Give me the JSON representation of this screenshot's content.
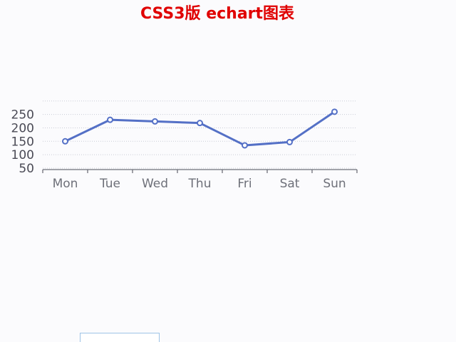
{
  "title": "CSS3版 echart图表",
  "bottom_button": {
    "label": ""
  },
  "colors": {
    "title": "#e00000",
    "series": "#5470c6",
    "axis": "#6e7079",
    "grid": "#e0e6f1"
  },
  "chart_data": {
    "type": "line",
    "categories": [
      "Mon",
      "Tue",
      "Wed",
      "Thu",
      "Fri",
      "Sat",
      "Sun"
    ],
    "values": [
      150,
      230,
      224,
      218,
      135,
      147,
      260
    ],
    "y_ticks": [
      50,
      100,
      150,
      200,
      250
    ],
    "ylim": [
      0,
      300
    ],
    "grid": true,
    "title": "",
    "xlabel": "",
    "ylabel": ""
  }
}
